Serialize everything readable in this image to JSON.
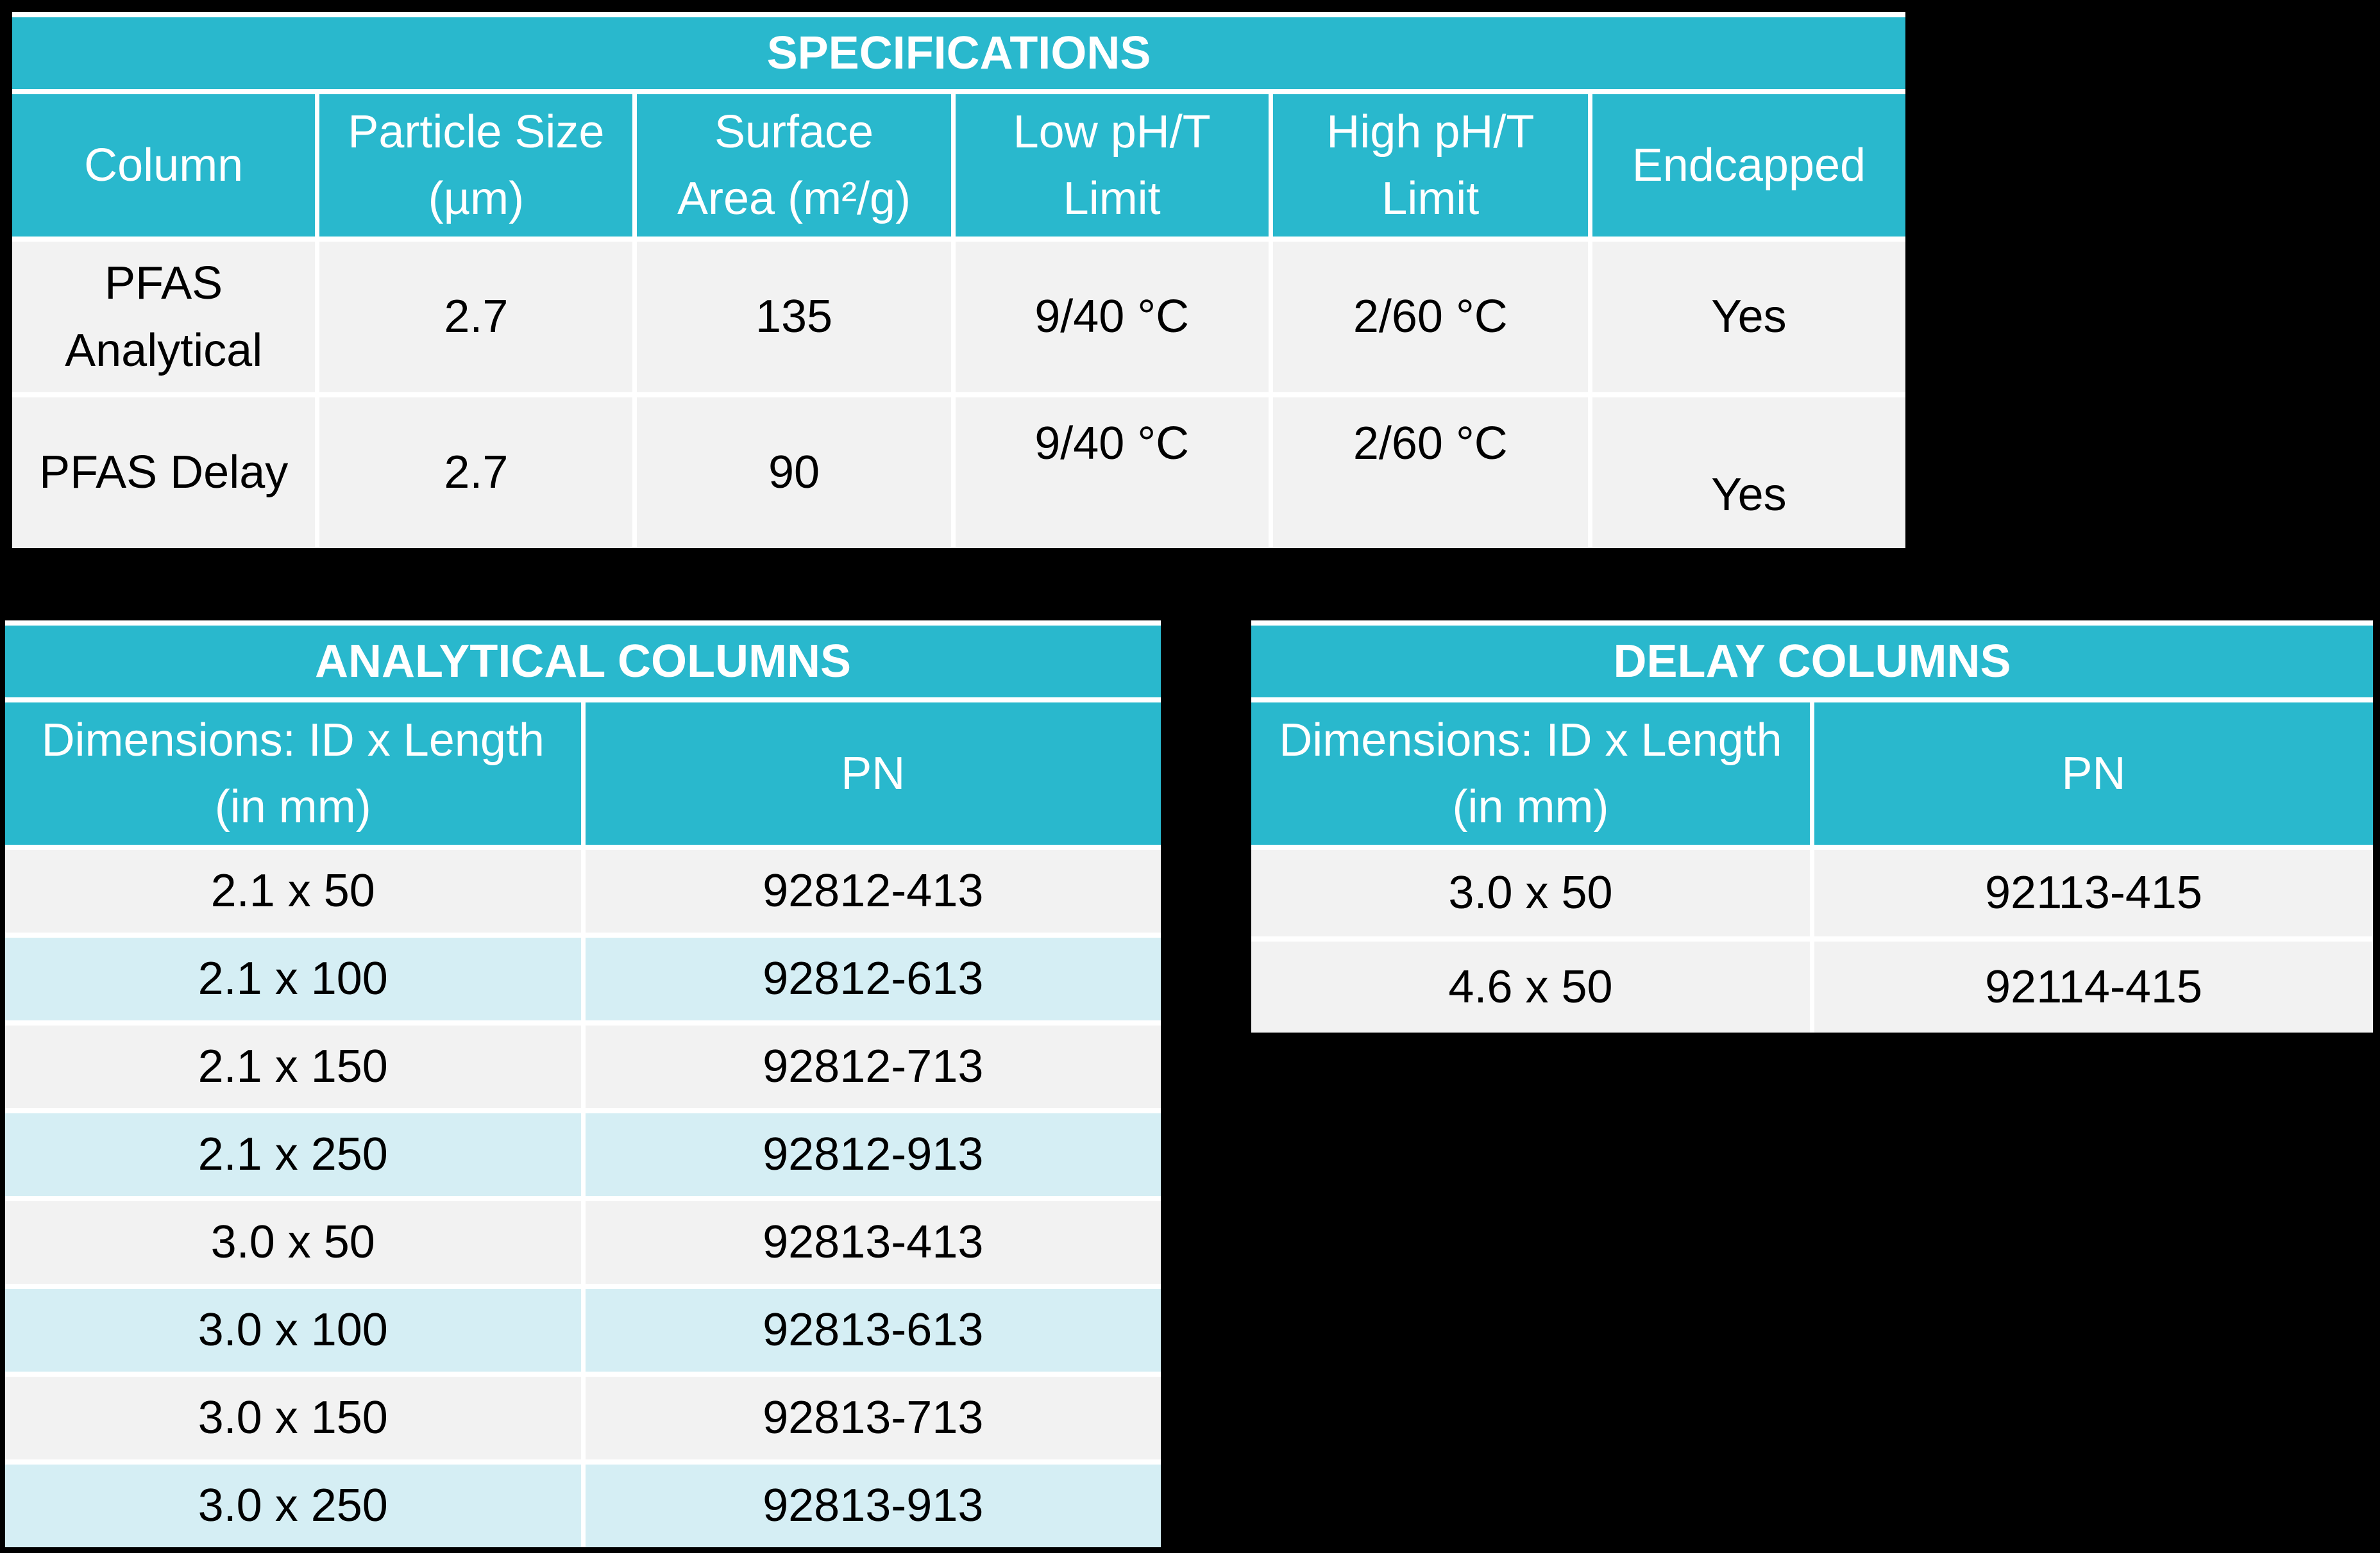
{
  "colors": {
    "teal": "#29B8CD",
    "row_gray": "#F2F2F2",
    "row_cyan": "#D5EEF4",
    "grid_lines": "#FFFFFF",
    "page_background": "#000000",
    "header_text": "#FFFFFF",
    "body_text": "#000000"
  },
  "spec_table": {
    "title": "SPECIFICATIONS",
    "headers": [
      "Column",
      "Particle Size\n(µm)",
      "Surface\nArea (m²/g)",
      "Low pH/T\nLimit",
      "High pH/T\nLimit",
      "Endcapped"
    ],
    "rows": [
      [
        "PFAS\nAnalytical",
        "2.7",
        "135",
        "9/40 °C",
        "2/60 °C",
        "Yes"
      ],
      [
        "PFAS Delay",
        "2.7",
        "90",
        "9/40 °C",
        "2/60 °C",
        "Yes"
      ]
    ]
  },
  "analytical_table": {
    "title": "ANALYTICAL COLUMNS",
    "headers": [
      "Dimensions: ID x Length\n(in mm)",
      "PN"
    ],
    "rows": [
      [
        "2.1 x 50",
        "92812-413"
      ],
      [
        "2.1 x 100",
        "92812-613"
      ],
      [
        "2.1 x 150",
        "92812-713"
      ],
      [
        "2.1 x 250",
        "92812-913"
      ],
      [
        "3.0 x 50",
        "92813-413"
      ],
      [
        "3.0 x 100",
        "92813-613"
      ],
      [
        "3.0 x 150",
        "92813-713"
      ],
      [
        "3.0 x 250",
        "92813-913"
      ]
    ]
  },
  "delay_table": {
    "title": "DELAY COLUMNS",
    "headers": [
      "Dimensions: ID x Length\n(in mm)",
      "PN"
    ],
    "rows": [
      [
        "3.0 x 50",
        "92113-415"
      ],
      [
        "4.6 x 50",
        "92114-415"
      ]
    ]
  }
}
